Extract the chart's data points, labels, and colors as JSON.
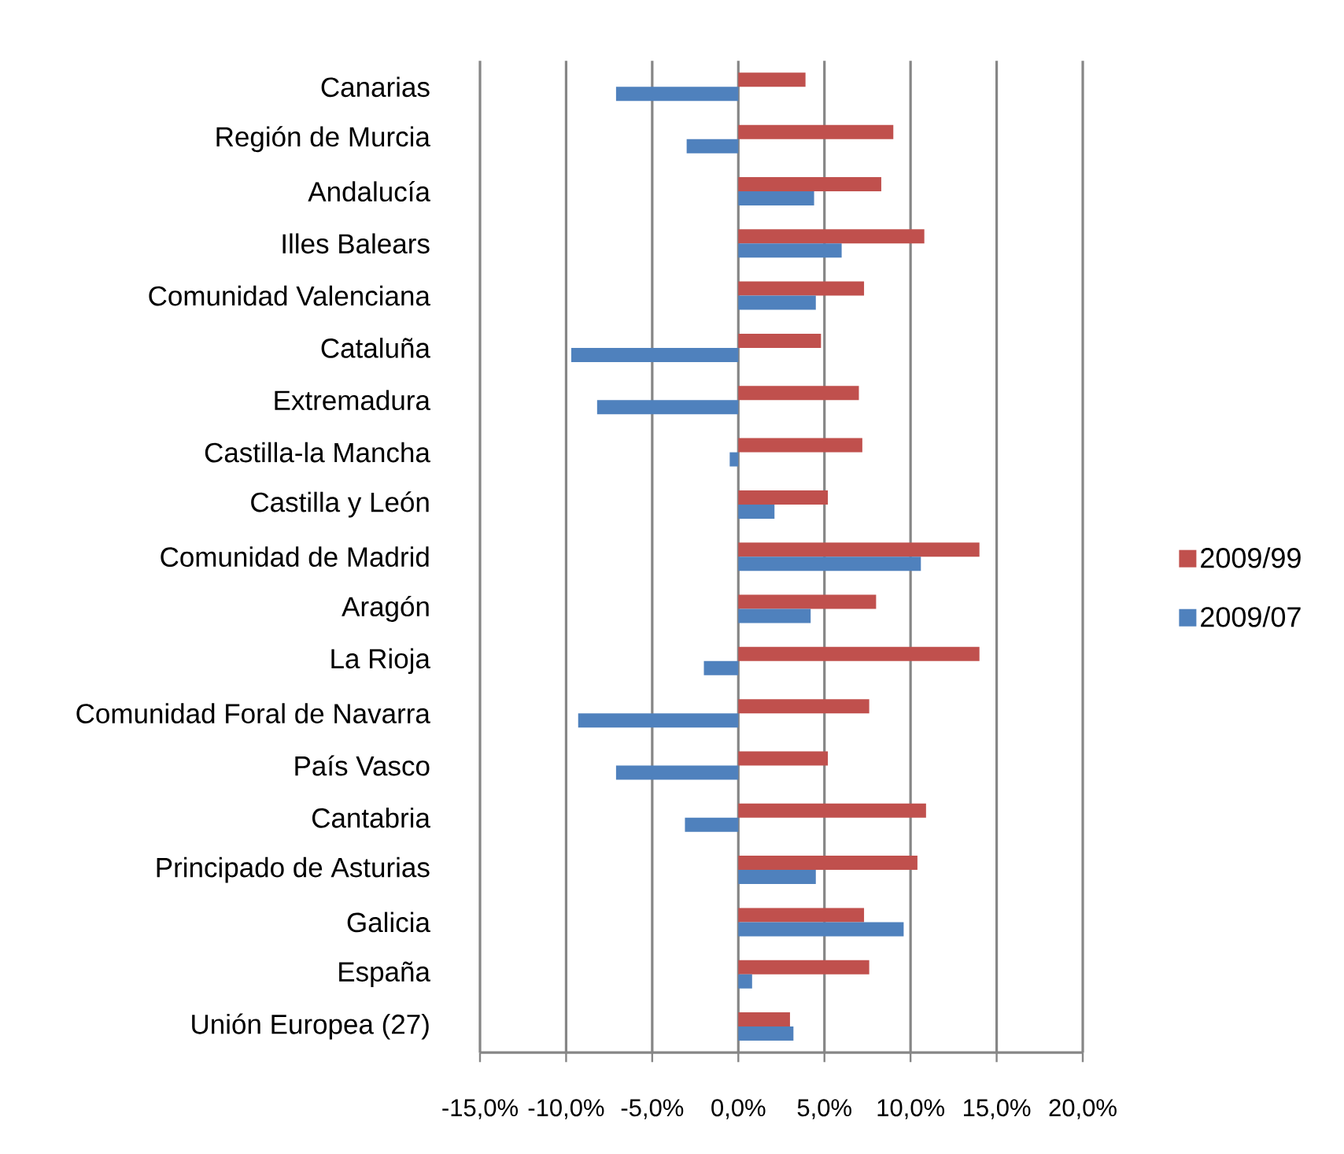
{
  "chart_data": {
    "type": "bar",
    "orientation": "horizontal",
    "categories": [
      "Canarias",
      "Región de Murcia",
      "Andalucía",
      "Illes Balears",
      "Comunidad Valenciana",
      "Cataluña",
      "Extremadura",
      "Castilla-la Mancha",
      "Castilla y León",
      "Comunidad de Madrid",
      "Aragón",
      "La Rioja",
      "Comunidad Foral de Navarra",
      "País Vasco",
      "Cantabria",
      "Principado de Asturias",
      "Galicia",
      "España",
      "Unión Europea  (27)"
    ],
    "series": [
      {
        "name": "2009/99",
        "color": "#c0504d",
        "values": [
          3.9,
          9.0,
          8.3,
          10.8,
          7.3,
          4.8,
          7.0,
          7.2,
          5.2,
          14.0,
          8.0,
          14.0,
          7.6,
          5.2,
          10.9,
          10.4,
          7.3,
          7.6,
          3.0
        ]
      },
      {
        "name": "2009/07",
        "color": "#4f81bd",
        "values": [
          -7.1,
          -3.0,
          4.4,
          6.0,
          4.5,
          -9.7,
          -8.2,
          -0.5,
          2.1,
          10.6,
          4.2,
          -2.0,
          -9.3,
          -7.1,
          -3.1,
          4.5,
          9.6,
          0.8,
          3.2
        ]
      }
    ],
    "xlim": [
      -15,
      20
    ],
    "xticks": [
      {
        "value": -15,
        "label": "-15,0%"
      },
      {
        "value": -10,
        "label": "-10,0%"
      },
      {
        "value": -5,
        "label": "-5,0%"
      },
      {
        "value": 0,
        "label": "0,0%"
      },
      {
        "value": 5,
        "label": "5,0%"
      },
      {
        "value": 10,
        "label": "10,0%"
      },
      {
        "value": 15,
        "label": "15,0%"
      },
      {
        "value": 20,
        "label": "20,0%"
      }
    ],
    "grid": "x",
    "legend": "right"
  }
}
